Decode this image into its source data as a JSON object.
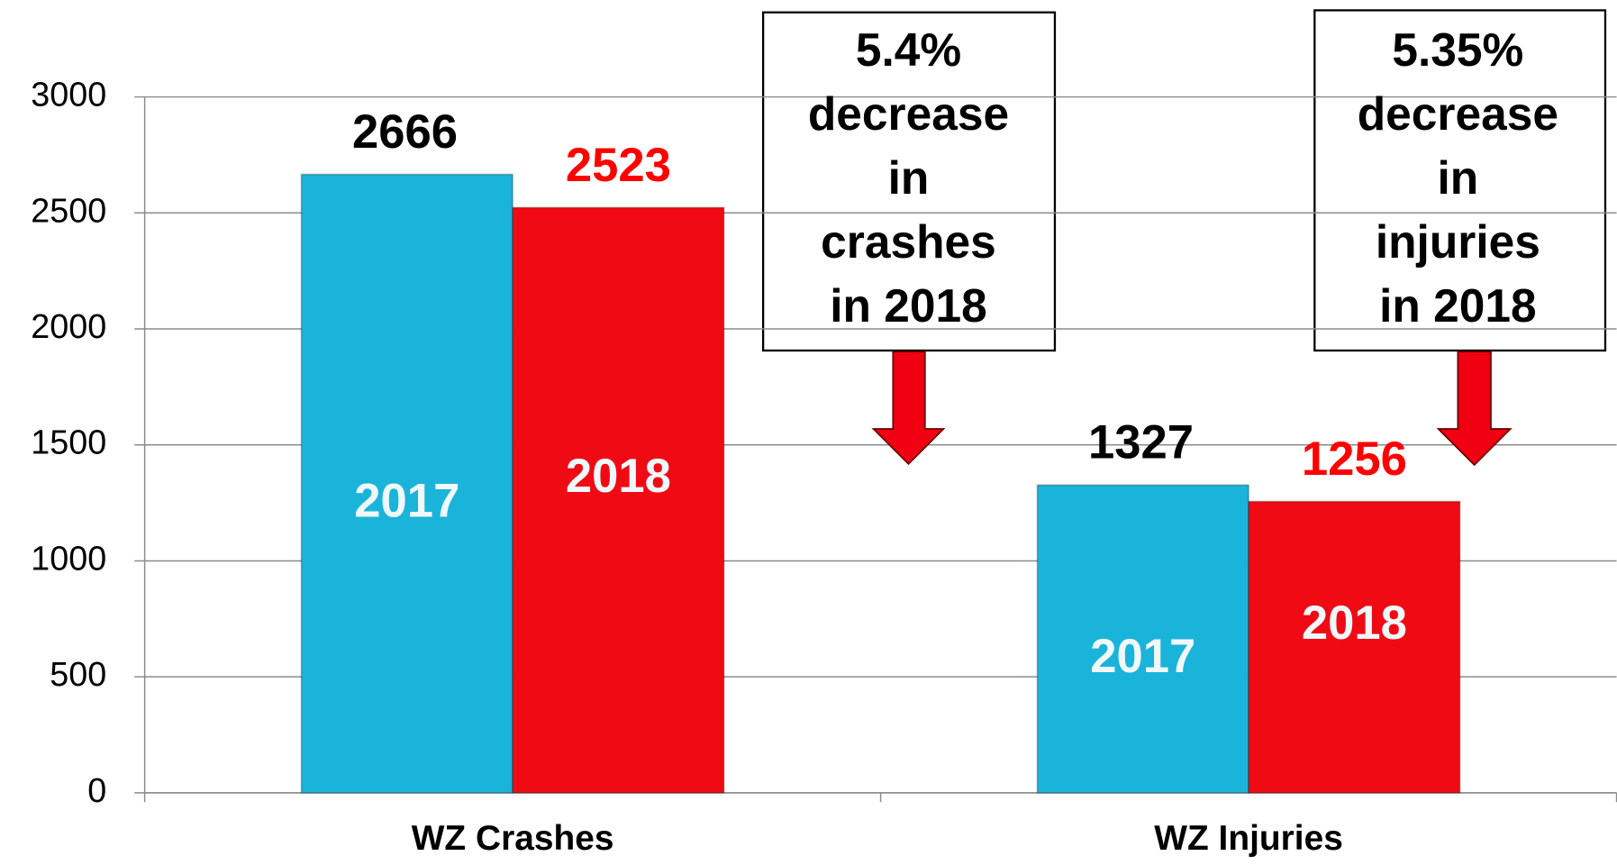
{
  "chart_data": {
    "type": "bar",
    "categories": [
      "WZ Crashes",
      "WZ Injuries"
    ],
    "series": [
      {
        "name": "2017",
        "color": "#1ab4da",
        "label_color": "#000000",
        "values": [
          2666,
          1327
        ]
      },
      {
        "name": "2018",
        "color": "#f00a14",
        "label_color": "#ff0000",
        "values": [
          2523,
          1256
        ]
      }
    ],
    "ylim": [
      0,
      3000
    ],
    "yticks": [
      0,
      500,
      1000,
      1500,
      2000,
      2500,
      3000
    ],
    "grid": true,
    "annotations": [
      {
        "lines": [
          "5.4%",
          "decrease",
          "in",
          "crashes",
          "in 2018"
        ]
      },
      {
        "lines": [
          "5.35%",
          "decrease",
          "in",
          "injuries",
          "in 2018"
        ]
      }
    ]
  }
}
